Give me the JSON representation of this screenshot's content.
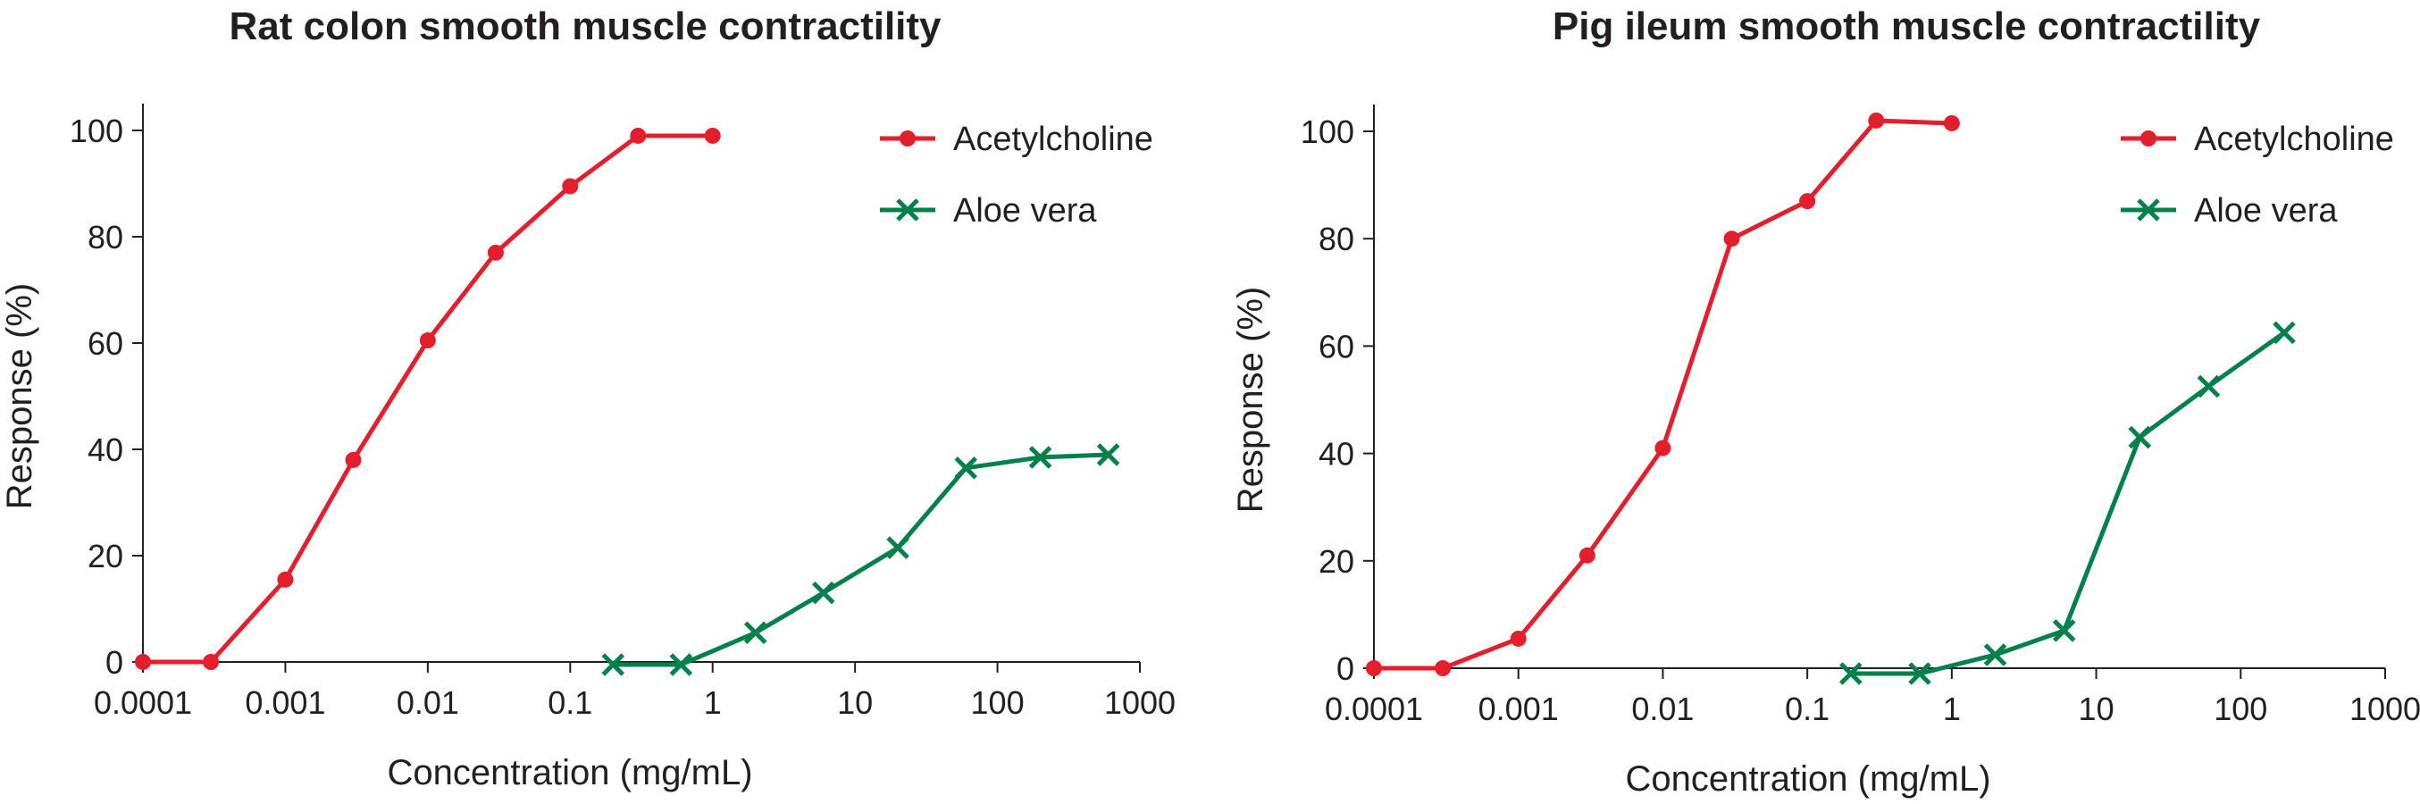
{
  "chart_data": [
    {
      "type": "line",
      "title": "Rat colon smooth muscle contractility",
      "xlabel": "Concentration (mg/mL)",
      "ylabel": "Response (%)",
      "x_scale": "log",
      "xlim": [
        0.0001,
        1000
      ],
      "ylim": [
        0,
        100
      ],
      "x_ticks": [
        "0.0001",
        "0.001",
        "0.01",
        "0.1",
        "1",
        "10",
        "100",
        "1000"
      ],
      "y_ticks": [
        "0",
        "20",
        "40",
        "60",
        "80",
        "100"
      ],
      "grid": false,
      "legend": "top-right",
      "series": [
        {
          "name": "Acetylcholine",
          "color": "#e31e2d",
          "marker": "circle",
          "x": [
            0.0001,
            0.0003,
            0.001,
            0.003,
            0.01,
            0.03,
            0.1,
            0.3,
            1
          ],
          "y": [
            0,
            0,
            15.5,
            38,
            60.5,
            77,
            89.5,
            99,
            99
          ]
        },
        {
          "name": "Aloe vera",
          "color": "#00804a",
          "marker": "x",
          "x": [
            0.2,
            0.6,
            2,
            6,
            20,
            60,
            200,
            600
          ],
          "y": [
            -0.5,
            -0.5,
            5.5,
            13,
            21.5,
            36.5,
            38.5,
            39
          ]
        }
      ]
    },
    {
      "type": "line",
      "title": "Pig ileum smooth muscle contractility",
      "xlabel": "Concentration (mg/mL)",
      "ylabel": "Response (%)",
      "x_scale": "log",
      "xlim": [
        0.0001,
        1000
      ],
      "ylim": [
        0,
        100
      ],
      "x_ticks": [
        "0.0001",
        "0.001",
        "0.01",
        "0.1",
        "1",
        "10",
        "100",
        "1000"
      ],
      "y_ticks": [
        "0",
        "20",
        "40",
        "60",
        "80",
        "100"
      ],
      "grid": false,
      "legend": "top-right",
      "series": [
        {
          "name": "Acetylcholine",
          "color": "#e31e2d",
          "marker": "circle",
          "x": [
            0.0001,
            0.0003,
            0.001,
            0.003,
            0.01,
            0.03,
            0.1,
            0.3,
            1
          ],
          "y": [
            0,
            0,
            5.5,
            21,
            41,
            80,
            87,
            102,
            101.5
          ]
        },
        {
          "name": "Aloe vera",
          "color": "#00804a",
          "marker": "x",
          "x": [
            0.2,
            0.6,
            2,
            6,
            20,
            60,
            200
          ],
          "y": [
            -1,
            -1,
            2.5,
            7,
            43,
            52.5,
            62.5
          ]
        }
      ]
    }
  ]
}
